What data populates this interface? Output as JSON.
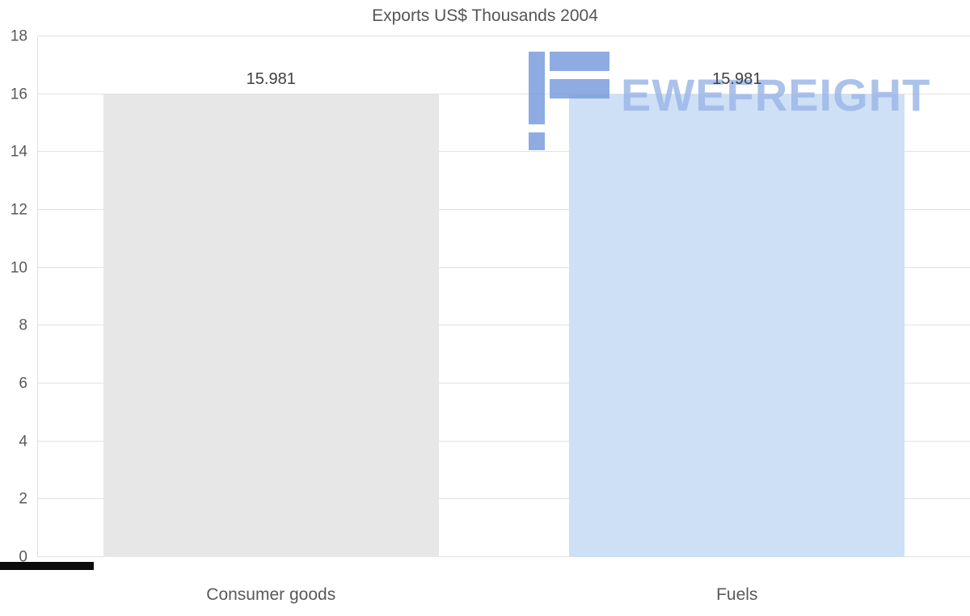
{
  "chart_data": {
    "type": "bar",
    "title": "Exports US$ Thousands 2004",
    "categories": [
      "Consumer goods",
      "Fuels"
    ],
    "values": [
      15.981,
      15.981
    ],
    "value_labels": [
      "15.981",
      "15.981"
    ],
    "bar_colors": [
      "#e7e7e7",
      "#cde0f6"
    ],
    "xlabel": "",
    "ylabel": "",
    "ylim": [
      0,
      18
    ],
    "yticks": [
      0,
      2,
      4,
      6,
      8,
      10,
      12,
      14,
      16,
      18
    ],
    "grid": true,
    "legend": false
  },
  "watermark": {
    "text": "EWEFREIGHT",
    "text_color": "#9db8e8",
    "logo_color": "#7b9ede"
  },
  "colors": {
    "background": "#ffffff",
    "gridline": "#e2e2e2",
    "title_text": "#555555",
    "tick_text": "#595959",
    "value_text": "#404040"
  }
}
